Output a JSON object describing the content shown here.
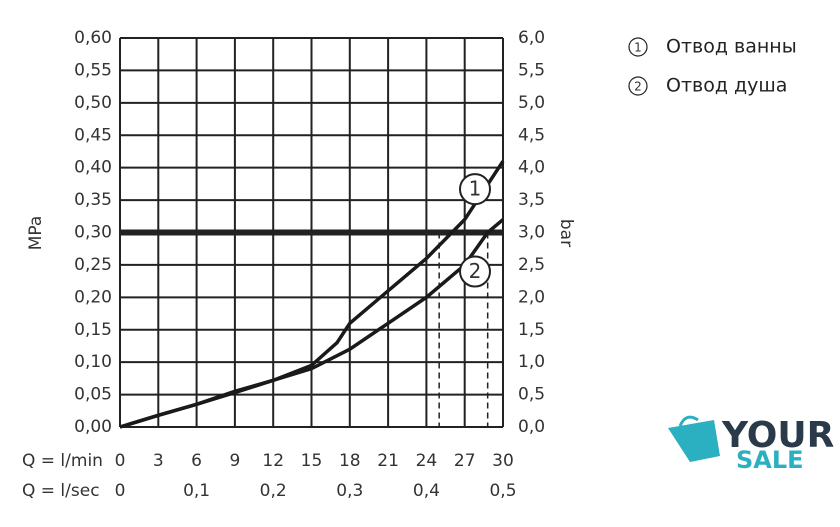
{
  "chart_data": {
    "type": "line",
    "xlim": [
      0,
      30
    ],
    "xticks": [
      0,
      3,
      6,
      9,
      12,
      15,
      18,
      21,
      24,
      27,
      30
    ],
    "xlabel": "Q = l/min",
    "x2lim": [
      0,
      0.5
    ],
    "x2ticks": [
      0,
      {
        "value": 0.1,
        "label": "0,1"
      },
      {
        "value": 0.2,
        "label": "0,2"
      },
      {
        "value": 0.3,
        "label": "0,3"
      },
      {
        "value": 0.4,
        "label": "0,4"
      },
      {
        "value": 0.5,
        "label": "0,5"
      }
    ],
    "x2label": "Q = l/sec",
    "ylim": [
      0,
      0.6
    ],
    "yticks": [
      {
        "value": 0,
        "label": "0,00"
      },
      {
        "value": 0.05,
        "label": "0,05"
      },
      {
        "value": 0.1,
        "label": "0,10"
      },
      {
        "value": 0.15,
        "label": "0,15"
      },
      {
        "value": 0.2,
        "label": "0,20"
      },
      {
        "value": 0.25,
        "label": "0,25"
      },
      {
        "value": 0.3,
        "label": "0,30"
      },
      {
        "value": 0.35,
        "label": "0,35"
      },
      {
        "value": 0.4,
        "label": "0,40"
      },
      {
        "value": 0.45,
        "label": "0,45"
      },
      {
        "value": 0.5,
        "label": "0,50"
      },
      {
        "value": 0.55,
        "label": "0,55"
      },
      {
        "value": 0.6,
        "label": "0,60"
      }
    ],
    "ylabel": "MPa",
    "y2lim": [
      0,
      6
    ],
    "y2ticks": [
      {
        "value": 0,
        "label": "0,0"
      },
      {
        "value": 0.5,
        "label": "0,5"
      },
      {
        "value": 1,
        "label": "1,0"
      },
      {
        "value": 1.5,
        "label": "1,5"
      },
      {
        "value": 2,
        "label": "2,0"
      },
      {
        "value": 2.5,
        "label": "2,5"
      },
      {
        "value": 3,
        "label": "3,0"
      },
      {
        "value": 3.5,
        "label": "3,5"
      },
      {
        "value": 4,
        "label": "4,0"
      },
      {
        "value": 4.5,
        "label": "4,5"
      },
      {
        "value": 5,
        "label": "5,0"
      },
      {
        "value": 5.5,
        "label": "5,5"
      },
      {
        "value": 6,
        "label": "6,0"
      }
    ],
    "y2label": "bar",
    "grid": true,
    "hline": 0.3,
    "vlines": [
      25,
      28.8
    ],
    "series": [
      {
        "name": "Отвод ванны",
        "label": "1",
        "color": "#1a1a1a",
        "x": [
          0,
          3,
          6,
          9,
          12,
          15,
          17,
          18,
          21,
          24,
          27,
          30
        ],
        "values": [
          0,
          0.018,
          0.035,
          0.053,
          0.072,
          0.095,
          0.13,
          0.16,
          0.21,
          0.26,
          0.32,
          0.41
        ]
      },
      {
        "name": "Отвод душа",
        "label": "2",
        "color": "#1a1a1a",
        "x": [
          0,
          3,
          6,
          9,
          12,
          15,
          18,
          21,
          24,
          27,
          28.8,
          30
        ],
        "values": [
          0,
          0.018,
          0.035,
          0.055,
          0.072,
          0.09,
          0.12,
          0.16,
          0.2,
          0.25,
          0.3,
          0.32
        ]
      }
    ]
  },
  "watermark": {
    "line1": "YOUR",
    "line2": "SALE"
  }
}
